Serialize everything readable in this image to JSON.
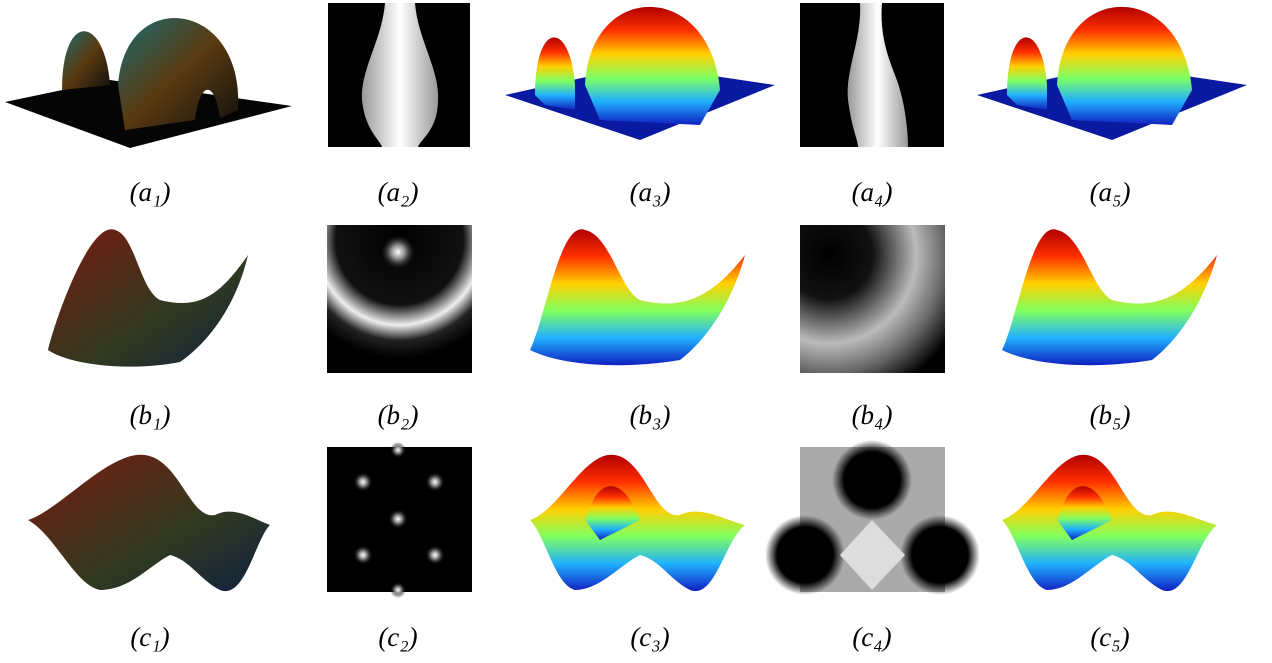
{
  "figure": {
    "rows": [
      {
        "labels": [
          "(a₁)",
          "(a₂)",
          "(a₃)",
          "(a₄)",
          "(a₅)"
        ]
      },
      {
        "labels": [
          "(b₁)",
          "(b₂)",
          "(b₃)",
          "(b₄)",
          "(b₅)"
        ]
      },
      {
        "labels": [
          "(c₁)",
          "(c₂)",
          "(c₃)",
          "(c₄)",
          "(c₅)"
        ]
      }
    ]
  }
}
